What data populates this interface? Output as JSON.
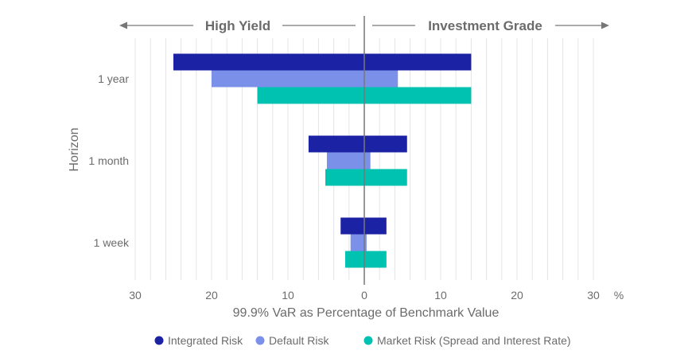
{
  "chart_data": {
    "type": "bar",
    "orientation": "horizontal-diverging",
    "left_header": "High Yield",
    "right_header": "Investment Grade",
    "xlabel": "99.9% VaR as Percentage of Benchmark Value",
    "ylabel": "Horizon",
    "unit_label": "%",
    "xlim": [
      -30,
      30
    ],
    "x_ticks": [
      -30,
      -20,
      -10,
      0,
      10,
      20,
      30
    ],
    "x_tick_labels": [
      "30",
      "20",
      "10",
      "0",
      "10",
      "20",
      "30"
    ],
    "minor_grid_step": 2,
    "grid": true,
    "legend_position": "bottom",
    "categories": [
      "1 year",
      "1 month",
      "1 week"
    ],
    "series": [
      {
        "name": "Integrated Risk",
        "color": "#1b22a3",
        "high_yield": [
          25,
          7.3,
          3.1
        ],
        "investment_grade": [
          14,
          5.6,
          2.9
        ]
      },
      {
        "name": "Default Risk",
        "color": "#7b90e8",
        "high_yield": [
          20,
          4.9,
          1.8
        ],
        "investment_grade": [
          4.4,
          0.8,
          0.3
        ]
      },
      {
        "name": "Market Risk (Spread and Interest Rate)",
        "color": "#00c2b0",
        "high_yield": [
          14,
          5.1,
          2.5
        ],
        "investment_grade": [
          14,
          5.6,
          2.9
        ]
      }
    ]
  }
}
